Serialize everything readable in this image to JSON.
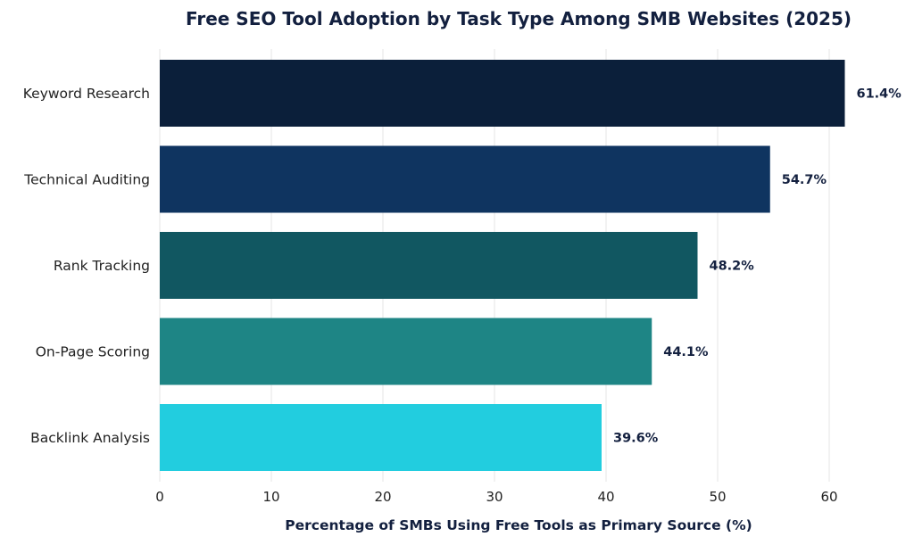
{
  "chart_data": {
    "type": "bar",
    "orientation": "horizontal",
    "title": "Free SEO Tool Adoption by Task Type Among SMB Websites (2025)",
    "xlabel": "Percentage of SMBs Using Free Tools as Primary Source (%)",
    "ylabel": "",
    "categories": [
      "Keyword Research",
      "Technical Auditing",
      "Rank Tracking",
      "On-Page Scoring",
      "Backlink Analysis"
    ],
    "values": [
      61.4,
      54.7,
      48.2,
      44.1,
      39.6
    ],
    "data_labels": [
      "61.4%",
      "54.7%",
      "48.2%",
      "44.1%",
      "39.6%"
    ],
    "colors": [
      "#0b1f3a",
      "#0f3460",
      "#115761",
      "#1e8585",
      "#22cddf"
    ],
    "xlim": [
      0,
      62.5
    ],
    "xticks": [
      0,
      10,
      20,
      30,
      40,
      50,
      60
    ],
    "grid": "vertical",
    "legend": "none"
  }
}
